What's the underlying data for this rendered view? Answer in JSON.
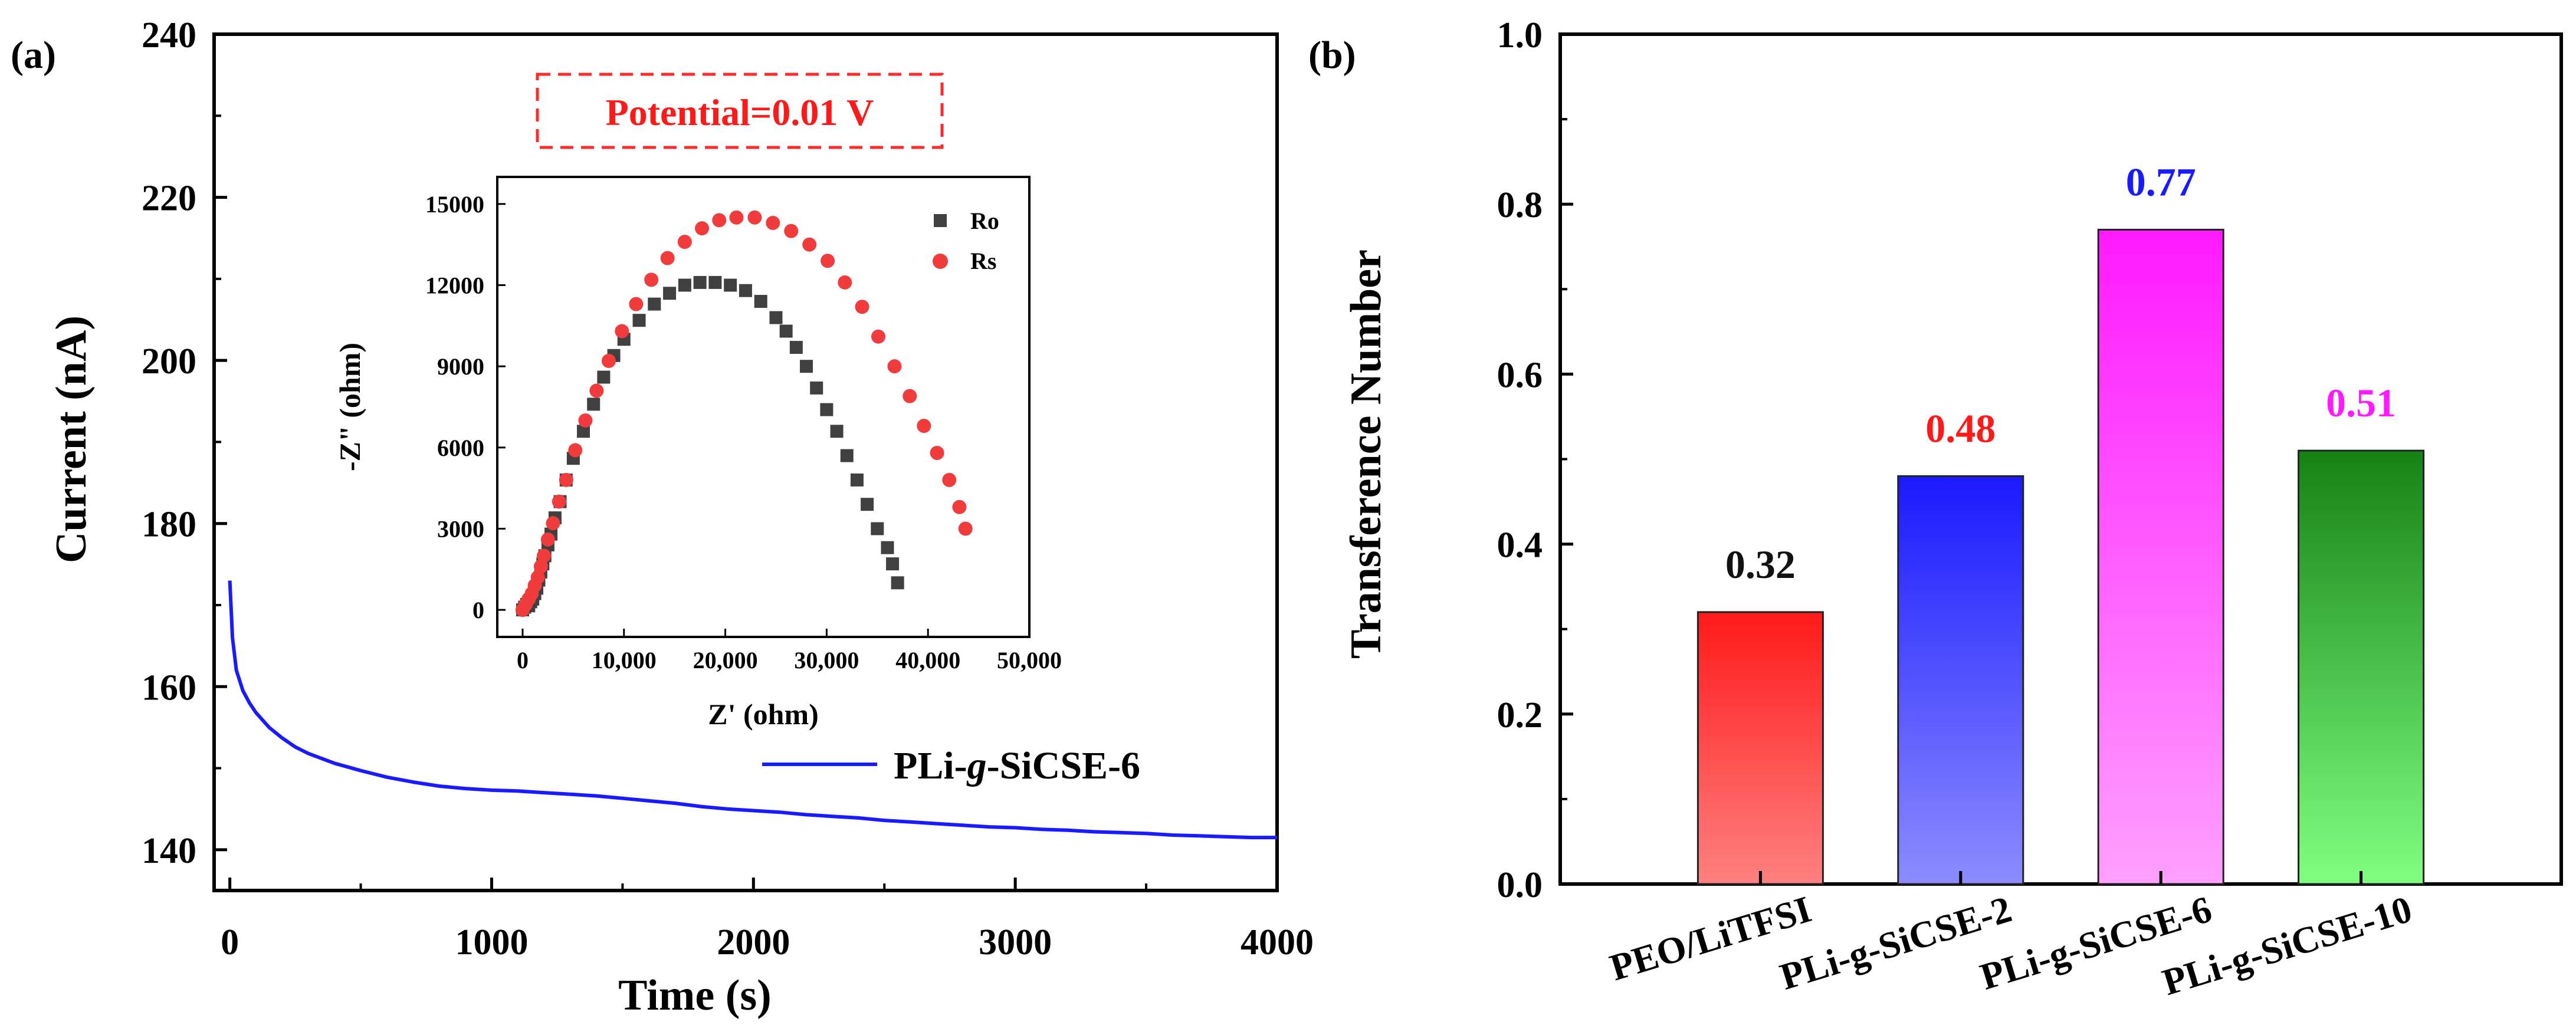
{
  "chart_data": [
    {
      "type": "line",
      "panel_label": "(a)",
      "xlabel": "Time (s)",
      "ylabel": "Current (nA)",
      "xlim": [
        -60,
        4000
      ],
      "ylim": [
        135,
        240
      ],
      "xticks": [
        0,
        1000,
        2000,
        3000,
        4000
      ],
      "xtick_labels": [
        "0",
        "1000",
        "2000",
        "3000",
        "4000"
      ],
      "yticks": [
        140,
        160,
        180,
        200,
        220,
        240
      ],
      "ytick_labels": [
        "140",
        "160",
        "180",
        "200",
        "220",
        "240"
      ],
      "annotation": "Potential=0.01 V",
      "legend": {
        "position": "center-right",
        "label_parts": [
          "PLi-",
          "g",
          "-SiCSE-6"
        ]
      },
      "series": [
        {
          "name": "PLi-g-SiCSE-6",
          "color": "#1a1aff",
          "x": [
            0,
            10,
            25,
            50,
            75,
            100,
            150,
            200,
            250,
            300,
            400,
            500,
            600,
            700,
            800,
            900,
            1000,
            1100,
            1200,
            1300,
            1400,
            1500,
            1600,
            1700,
            1800,
            1900,
            2000,
            2100,
            2200,
            2300,
            2400,
            2500,
            2600,
            2700,
            2800,
            2900,
            3000,
            3100,
            3200,
            3300,
            3400,
            3500,
            3600,
            3700,
            3800,
            3900,
            4000
          ],
          "y": [
            173,
            166,
            162,
            159.5,
            158,
            156.8,
            155,
            153.7,
            152.6,
            151.8,
            150.6,
            149.7,
            148.9,
            148.3,
            147.8,
            147.5,
            147.3,
            147.2,
            147.0,
            146.8,
            146.6,
            146.3,
            146.0,
            145.7,
            145.3,
            145.0,
            144.8,
            144.6,
            144.3,
            144.1,
            143.9,
            143.6,
            143.4,
            143.2,
            143.0,
            142.8,
            142.7,
            142.5,
            142.4,
            142.2,
            142.1,
            142.0,
            141.8,
            141.7,
            141.6,
            141.5,
            141.5
          ]
        }
      ],
      "inset": {
        "type": "scatter",
        "xlabel": "Z' (ohm)",
        "ylabel": "-Z\" (ohm)",
        "xlim": [
          -2500,
          50000
        ],
        "ylim": [
          -1000,
          16000
        ],
        "xticks": [
          0,
          10000,
          20000,
          30000,
          40000,
          50000
        ],
        "xtick_labels": [
          "0",
          "10,000",
          "20,000",
          "30,000",
          "40,000",
          "50,000"
        ],
        "yticks": [
          0,
          3000,
          6000,
          9000,
          12000,
          15000
        ],
        "ytick_labels": [
          "0",
          "3000",
          "6000",
          "9000",
          "12000",
          "15000"
        ],
        "series": [
          {
            "name": "Ro",
            "marker": "square",
            "color": "#404040",
            "x": [
              0,
              200,
              400,
              600,
              800,
              1000,
              1200,
              1400,
              1600,
              1800,
              2000,
              2200,
              2500,
              2800,
              3200,
              3700,
              4300,
              5000,
              6000,
              7000,
              8000,
              9000,
              10000,
              11500,
              13000,
              14500,
              16000,
              17500,
              19000,
              20500,
              22000,
              23500,
              25000,
              26000,
              27000,
              28000,
              29000,
              30000,
              31000,
              32000,
              33000,
              34000,
              35000,
              36000,
              36500,
              37000
            ],
            "y": [
              0,
              100,
              200,
              150,
              300,
              400,
              600,
              800,
              1100,
              1400,
              1700,
              2000,
              2400,
              2800,
              3400,
              4000,
              4800,
              5600,
              6600,
              7600,
              8600,
              9400,
              10000,
              10700,
              11300,
              11700,
              12000,
              12100,
              12100,
              12000,
              11800,
              11400,
              10800,
              10300,
              9700,
              9000,
              8200,
              7400,
              6600,
              5700,
              4800,
              3900,
              3000,
              2300,
              1700,
              1000
            ]
          },
          {
            "name": "Rs",
            "marker": "circle",
            "color": "#f03c3c",
            "x": [
              0,
              300,
              600,
              900,
              1200,
              1500,
              1800,
              2100,
              2500,
              3000,
              3600,
              4300,
              5200,
              6200,
              7300,
              8500,
              9800,
              11200,
              12700,
              14300,
              16000,
              17700,
              19400,
              21100,
              22900,
              24700,
              26500,
              28300,
              30100,
              31800,
              33500,
              35100,
              36700,
              38200,
              39600,
              40900,
              42100,
              43100,
              43700
            ],
            "y": [
              0,
              200,
              400,
              600,
              900,
              1200,
              1600,
              2000,
              2600,
              3200,
              4000,
              4800,
              5900,
              7000,
              8100,
              9200,
              10300,
              11300,
              12200,
              13000,
              13600,
              14100,
              14400,
              14500,
              14500,
              14300,
              14000,
              13500,
              12900,
              12100,
              11200,
              10100,
              9000,
              7900,
              6800,
              5800,
              4800,
              3800,
              3000
            ]
          }
        ]
      }
    },
    {
      "type": "bar",
      "panel_label": "(b)",
      "xlabel": "",
      "ylabel": "Transference Number",
      "ylim": [
        0,
        1.0
      ],
      "yticks": [
        0.0,
        0.2,
        0.4,
        0.6,
        0.8,
        1.0
      ],
      "ytick_labels": [
        "0.0",
        "0.2",
        "0.4",
        "0.6",
        "0.8",
        "1.0"
      ],
      "categories": [
        "PEO/LiTFSI",
        "PLi-g-SiCSE-2",
        "PLi-g-SiCSE-6",
        "PLi-g-SiCSE-10"
      ],
      "values": [
        0.32,
        0.48,
        0.77,
        0.51
      ],
      "value_labels": [
        "0.32",
        "0.48",
        "0.77",
        "0.51"
      ],
      "bar_colors_top": [
        "#ff1a1a",
        "#1a1aff",
        "#ff1aff",
        "#168216"
      ],
      "bar_colors_bottom": [
        "#ff8080",
        "#8c8cff",
        "#ffa0ff",
        "#80ff80"
      ],
      "label_colors": [
        "#111111",
        "#ff1a1a",
        "#1a1aff",
        "#ff1aff"
      ]
    }
  ]
}
